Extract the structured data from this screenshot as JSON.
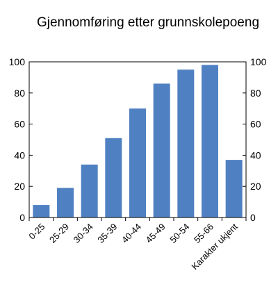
{
  "chart_data": {
    "type": "bar",
    "title": "Gjennomføring etter grunnskolepoeng",
    "xlabel": "",
    "ylabel": "",
    "ylim": [
      0,
      100
    ],
    "yticks": [
      0,
      20,
      40,
      60,
      80,
      100
    ],
    "right_axis": true,
    "grid": false,
    "categories": [
      "0-25",
      "25-29",
      "30-34",
      "35-39",
      "40-44",
      "45-49",
      "50-54",
      "55-66",
      "Karakter ukjent"
    ],
    "values": [
      8,
      19,
      34,
      51,
      70,
      86,
      95,
      98,
      37
    ],
    "bar_color": "#4f81c2"
  }
}
